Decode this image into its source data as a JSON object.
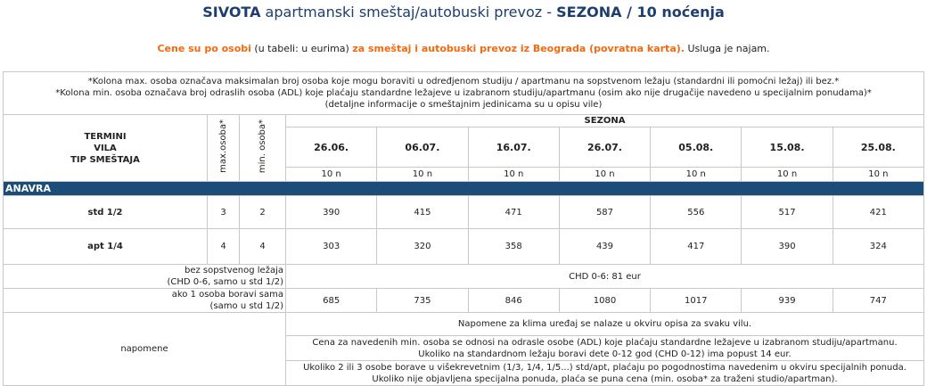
{
  "header": {
    "title": [
      "SIVOTA",
      " apartmanski smeštaj/autobuski prevoz - ",
      "SEZONA / 10 noćenja"
    ],
    "subtitle": [
      "Cene su po osobi",
      " (u tabeli: u eurima) ",
      "za smeštaj i autobuski prevoz iz Beograda (povratna karta).",
      " Usluga je najam."
    ]
  },
  "table": {
    "notes": [
      "*Kolona max. osoba označava maksimalan broj osoba koje mogu boraviti u određjenom studiju / apartmanu na sopstvenom ležaju (standardni ili pomoćni ležaj) ili bez.*",
      "*Kolona min. osoba označava broj odraslih osoba (ADL) koje plaćaju standardne ležajeve u izabranom studiju/apartmanu (osim ako nije drugačije navedeno u specijalnim ponudama)*",
      "(detaljne informacije o smeštajnim jedinicama su u opisu vile)"
    ],
    "head": {
      "label": [
        "TERMINI",
        "VILA",
        "TIP SMEŠTAJA"
      ],
      "max": "max.osoba*",
      "min": "min. osoba*",
      "season": "SEZONA",
      "dates": [
        "26.06.",
        "06.07.",
        "16.07.",
        "26.07.",
        "05.08.",
        "15.08.",
        "25.08."
      ],
      "nights": [
        "10 n",
        "10 n",
        "10 n",
        "10 n",
        "10 n",
        "10 n",
        "10 n"
      ]
    },
    "section": "ANAVRA",
    "rows": [
      {
        "type": "std 1/2",
        "max": 3,
        "min": 2,
        "prices": [
          390,
          415,
          471,
          587,
          556,
          517,
          421
        ]
      },
      {
        "type": "apt 1/4",
        "max": 4,
        "min": 4,
        "prices": [
          303,
          320,
          358,
          439,
          417,
          390,
          324
        ]
      }
    ],
    "child": {
      "label": [
        "bez sopstvenog ležaja",
        "(CHD 0-6, samo u std 1/2)"
      ],
      "text": "CHD 0-6: 81 eur"
    },
    "single": {
      "label": [
        "ako 1 osoba boravi sama",
        "(samo u std 1/2)"
      ],
      "prices": [
        685,
        735,
        846,
        1080,
        1017,
        939,
        747
      ]
    },
    "remarks": {
      "label": "napomene",
      "notes": [
        [
          "Napomene za klima uređaj se nalaze u okviru opisa za svaku vilu."
        ],
        [
          "Cena za  navedenih min. osoba se odnosi na odrasle osobe (ADL) koje plaćaju standardne ležajeve u izabranom studiju/apartmanu.",
          "Ukoliko na standardnom ležaju boravi dete 0-12 god (CHD 0-12) ima popust 14 eur."
        ],
        [
          "Ukoliko 2 ili 3 osobe borave u višekrevetnim (1/3, 1/4, 1/5...) std/apt, plaćaju po pogodnostima navedenim u okviru specijalnih ponuda.",
          "Ukoliko nije objavljena specijalna ponuda, plaća se puna cena (min. osoba* za traženi studio/apartman)."
        ]
      ]
    }
  }
}
